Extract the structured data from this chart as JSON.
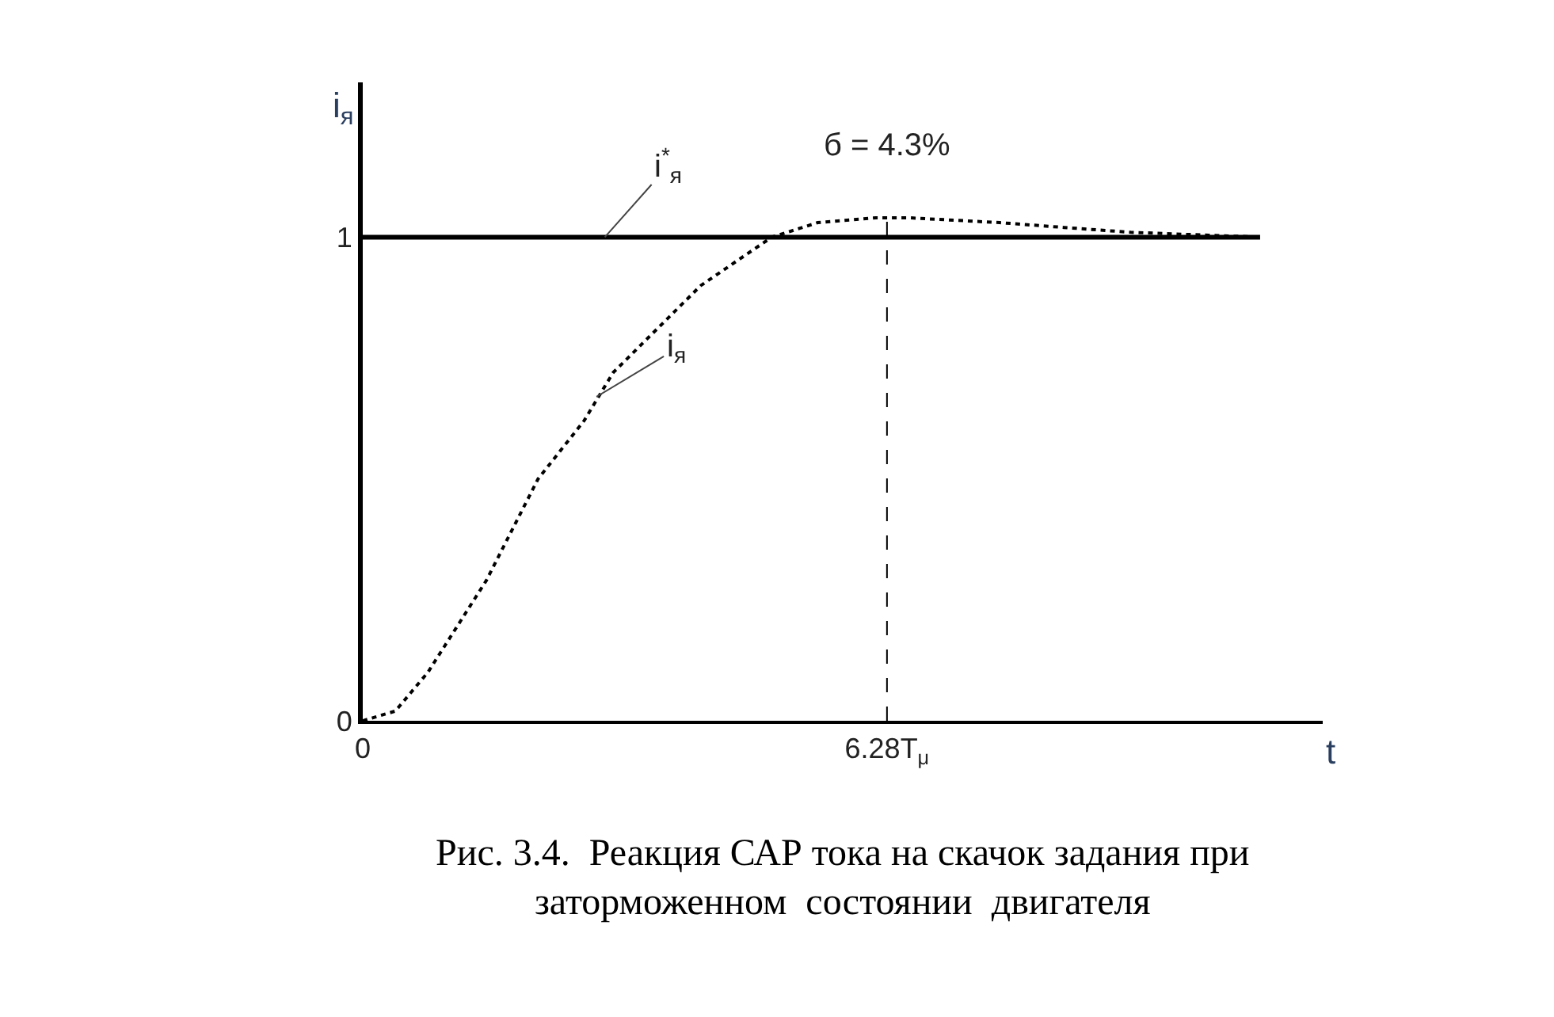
{
  "chart_data": {
    "type": "line",
    "xlabel": "t",
    "ylabel": "i$_{я}$",
    "xlim": [
      0,
      11.5
    ],
    "ylim": [
      0,
      1.32
    ],
    "xticks": [
      {
        "value": 0,
        "label": "0"
      },
      {
        "value": 6.28,
        "label": "6.28T$_{μ}$"
      }
    ],
    "yticks": [
      {
        "value": 0,
        "label": "0"
      },
      {
        "value": 1,
        "label": "1"
      }
    ],
    "series": [
      {
        "color": "#000000",
        "line_style": "solid",
        "x": [
          0,
          10.75
        ],
        "values": [
          1,
          1
        ]
      },
      {
        "color": "#000000",
        "line_style": "dotted",
        "x": [
          0,
          0.39,
          0.78,
          1.48,
          2.1,
          2.65,
          3.0,
          4.05,
          4.9,
          5.45,
          6.15,
          6.54,
          7.63,
          8.4,
          9.2,
          10.75
        ],
        "values": [
          0,
          0.02,
          0.1,
          0.29,
          0.5,
          0.62,
          0.72,
          0.9,
          1.0,
          1.03,
          1.04,
          1.04,
          1.03,
          1.02,
          1.01,
          1.0
        ]
      }
    ],
    "ref_lines": [
      {
        "axis": "x",
        "value": 6.28,
        "line_style": "dashed",
        "color": "#000000"
      }
    ],
    "annotations": [
      {
        "text": "i$^{*}$$_{я}$",
        "x": 2.9,
        "y": 1.0
      },
      {
        "text": "i$_{я}$",
        "x": 2.8,
        "y": 0.67
      },
      {
        "text": "б = 4.3%",
        "x": 6.28,
        "y": 1.04
      },
      "Рис. 3.4.  Реакция САР тока на скачок задания при\nзаторможенном  состоянии  двигателя"
    ]
  }
}
